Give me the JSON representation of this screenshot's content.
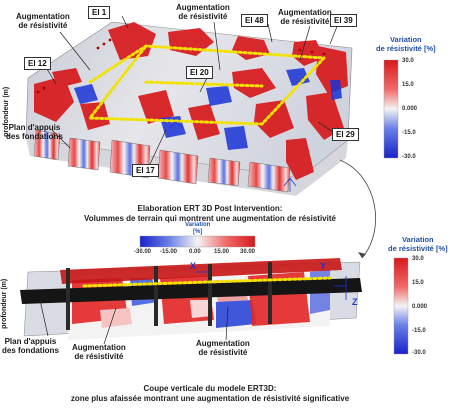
{
  "top_view": {
    "electrodes": [
      "El 1",
      "El 48",
      "El 39",
      "El 12",
      "El 20",
      "El 29",
      "El 17"
    ],
    "labels": {
      "aug_left": "Augmentation\nde résistivité",
      "aug_center": "Augmentation\nde résistivité",
      "aug_right": "Augmentation\nde résistivité",
      "depth_axis": "profondeur (m)",
      "foundation_plane": "Plan d'appuis\ndes fondations"
    },
    "colorbar": {
      "title": "Variation\nde résistivité [%]",
      "ticks": [
        "30.0",
        "15.0",
        "0.000",
        "-15.0",
        "-30.0"
      ]
    },
    "caption": "Elaboration ERT 3D Post Intervention:\nVolummes de terrain qui montrent une augmentation de résistivité"
  },
  "middle_legend": {
    "title": "Variation\n[%]",
    "ticks": [
      "-30.00",
      "-15.00",
      "0.00",
      "15.00",
      "30.00"
    ]
  },
  "bottom_view": {
    "labels": {
      "depth_axis": "profondeur (m)",
      "foundation_plane": "Plan d'appuis\ndes fondations",
      "aug_left": "Augmentation\nde résistivité",
      "aug_right": "Augmentation\nde résistivité",
      "axis_x": "X",
      "axis_y": "Y",
      "axis_z": "Z"
    },
    "colorbar": {
      "title": "Variation\nde résistivité [%]",
      "ticks": [
        "30.0",
        "15.0",
        "0.000",
        "-15.0",
        "-30.0"
      ]
    },
    "caption": "Coupe verticale du modele ERT3D:\nzone plus afaissée montrant une augmentation de résistivité significative"
  },
  "colors": {
    "high": "#d7191c",
    "mid": "#f2f2f2",
    "low": "#1a33d6",
    "outline_dots": "#f2e200",
    "colorbar_title": "#1f4fa8"
  }
}
